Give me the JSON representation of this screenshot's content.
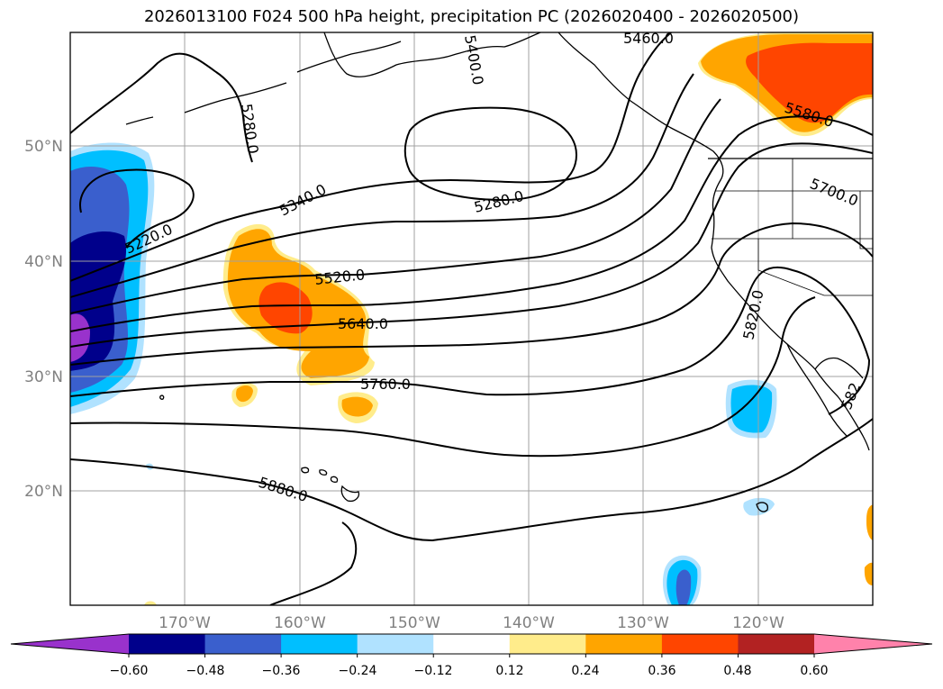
{
  "title": "2026013100 F024 500 hPa height, precipitation PC (2026020400 - 2026020500)",
  "latitude_labels": [
    "50°N",
    "40°N",
    "30°N",
    "20°N"
  ],
  "longitude_labels": [
    "170°W",
    "160°W",
    "150°W",
    "140°W",
    "130°W",
    "120°W"
  ],
  "contour_labels": [
    "5460.0",
    "5400.0",
    "5280.0",
    "5580.0",
    "5700.0",
    "5220.0",
    "5340.0",
    "5280.0",
    "5520.0",
    "5640.0",
    "5820.0",
    "5760.0",
    "5880.0",
    "582"
  ],
  "colorbar": {
    "tick_labels": [
      "−0.60",
      "−0.48",
      "−0.36",
      "−0.24",
      "−0.12",
      "0.12",
      "0.24",
      "0.36",
      "0.48",
      "0.60"
    ],
    "colors": [
      "#9932cc",
      "#00008b",
      "#3a5fcd",
      "#00bfff",
      "#b0e2ff",
      "#ffffff",
      "#ffec8b",
      "#ffa500",
      "#ff4500",
      "#b22222",
      "#ff82ab"
    ]
  }
}
